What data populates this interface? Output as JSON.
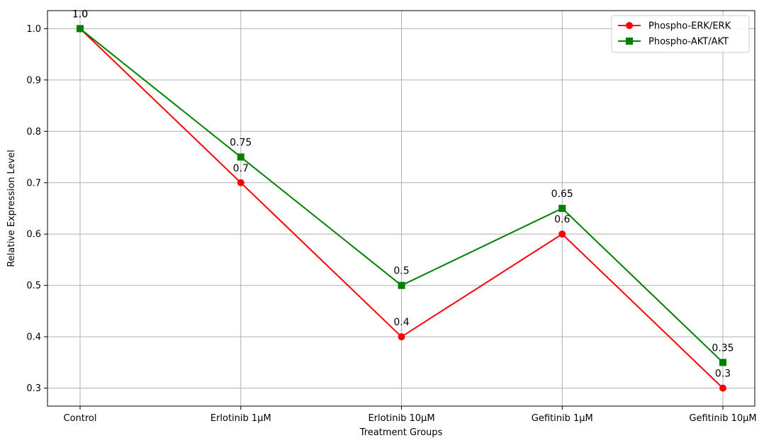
{
  "chart_data": {
    "type": "line",
    "title": "",
    "xlabel": "Treatment Groups",
    "ylabel": "Relative Expression Level",
    "categories": [
      "Control",
      "Erlotinib 1μM",
      "Erlotinib 10μM",
      "Gefitinib 1μM",
      "Gefitinib 10μM"
    ],
    "ylim": [
      0.265,
      1.035
    ],
    "yticks": [
      "0.3",
      "0.4",
      "0.5",
      "0.6",
      "0.7",
      "0.8",
      "0.9",
      "1.0"
    ],
    "grid": true,
    "legend_position": "top-right",
    "series": [
      {
        "name": "Phospho-ERK/ERK",
        "color": "#ff0000",
        "marker": "circle",
        "values": [
          1.0,
          0.7,
          0.4,
          0.6,
          0.3
        ],
        "labels": [
          "1.0",
          "0.7",
          "0.4",
          "0.6",
          "0.3"
        ]
      },
      {
        "name": "Phospho-AKT/AKT",
        "color": "#008000",
        "marker": "square",
        "values": [
          1.0,
          0.75,
          0.5,
          0.65,
          0.35
        ],
        "labels": [
          "1.0",
          "0.75",
          "0.5",
          "0.65",
          "0.35"
        ]
      }
    ]
  }
}
